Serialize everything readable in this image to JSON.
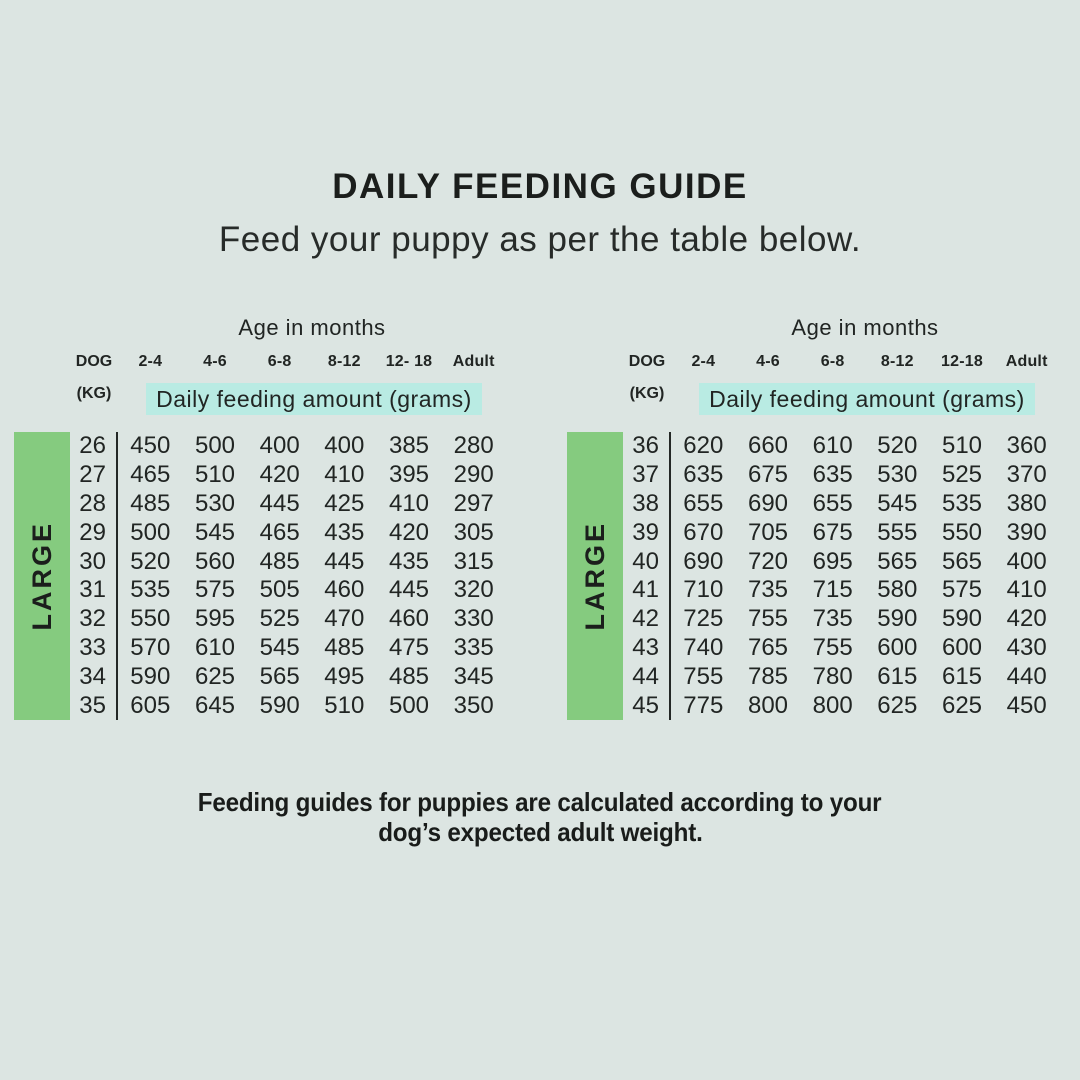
{
  "title": "DAILY FEEDING GUIDE",
  "subtitle": "Feed your puppy as per the table below.",
  "footer": {
    "line1": "Feeding guides for puppies are calculated according to your",
    "line2": "dog’s expected adult weight."
  },
  "colors": {
    "background": "#dce5e2",
    "green": "#85cb7f",
    "teal": "#b9ebe3",
    "text": "#212523"
  },
  "tables": [
    {
      "age_header": "Age in months",
      "dog_label": "DOG",
      "kg_label": "(KG)",
      "age_columns": [
        "2-4",
        "4-6",
        "6-8",
        "8-12",
        "12- 18",
        "Adult"
      ],
      "banner": "Daily feeding amount (grams)",
      "size_label": "LARGE",
      "rows": [
        {
          "kg": "26",
          "values": [
            "450",
            "500",
            "400",
            "400",
            "385",
            "280"
          ]
        },
        {
          "kg": "27",
          "values": [
            "465",
            "510",
            "420",
            "410",
            "395",
            "290"
          ]
        },
        {
          "kg": "28",
          "values": [
            "485",
            "530",
            "445",
            "425",
            "410",
            "297"
          ]
        },
        {
          "kg": "29",
          "values": [
            "500",
            "545",
            "465",
            "435",
            "420",
            "305"
          ]
        },
        {
          "kg": "30",
          "values": [
            "520",
            "560",
            "485",
            "445",
            "435",
            "315"
          ]
        },
        {
          "kg": "31",
          "values": [
            "535",
            "575",
            "505",
            "460",
            "445",
            "320"
          ]
        },
        {
          "kg": "32",
          "values": [
            "550",
            "595",
            "525",
            "470",
            "460",
            "330"
          ]
        },
        {
          "kg": "33",
          "values": [
            "570",
            "610",
            "545",
            "485",
            "475",
            "335"
          ]
        },
        {
          "kg": "34",
          "values": [
            "590",
            "625",
            "565",
            "495",
            "485",
            "345"
          ]
        },
        {
          "kg": "35",
          "values": [
            "605",
            "645",
            "590",
            "510",
            "500",
            "350"
          ]
        }
      ]
    },
    {
      "age_header": "Age in months",
      "dog_label": "DOG",
      "kg_label": "(KG)",
      "age_columns": [
        "2-4",
        "4-6",
        "6-8",
        "8-12",
        "12-18",
        "Adult"
      ],
      "banner": "Daily feeding amount (grams)",
      "size_label": "LARGE",
      "rows": [
        {
          "kg": "36",
          "values": [
            "620",
            "660",
            "610",
            "520",
            "510",
            "360"
          ]
        },
        {
          "kg": "37",
          "values": [
            "635",
            "675",
            "635",
            "530",
            "525",
            "370"
          ]
        },
        {
          "kg": "38",
          "values": [
            "655",
            "690",
            "655",
            "545",
            "535",
            "380"
          ]
        },
        {
          "kg": "39",
          "values": [
            "670",
            "705",
            "675",
            "555",
            "550",
            "390"
          ]
        },
        {
          "kg": "40",
          "values": [
            "690",
            "720",
            "695",
            "565",
            "565",
            "400"
          ]
        },
        {
          "kg": "41",
          "values": [
            "710",
            "735",
            "715",
            "580",
            "575",
            "410"
          ]
        },
        {
          "kg": "42",
          "values": [
            "725",
            "755",
            "735",
            "590",
            "590",
            "420"
          ]
        },
        {
          "kg": "43",
          "values": [
            "740",
            "765",
            "755",
            "600",
            "600",
            "430"
          ]
        },
        {
          "kg": "44",
          "values": [
            "755",
            "785",
            "780",
            "615",
            "615",
            "440"
          ]
        },
        {
          "kg": "45",
          "values": [
            "775",
            "800",
            "800",
            "625",
            "625",
            "450"
          ]
        }
      ]
    }
  ]
}
